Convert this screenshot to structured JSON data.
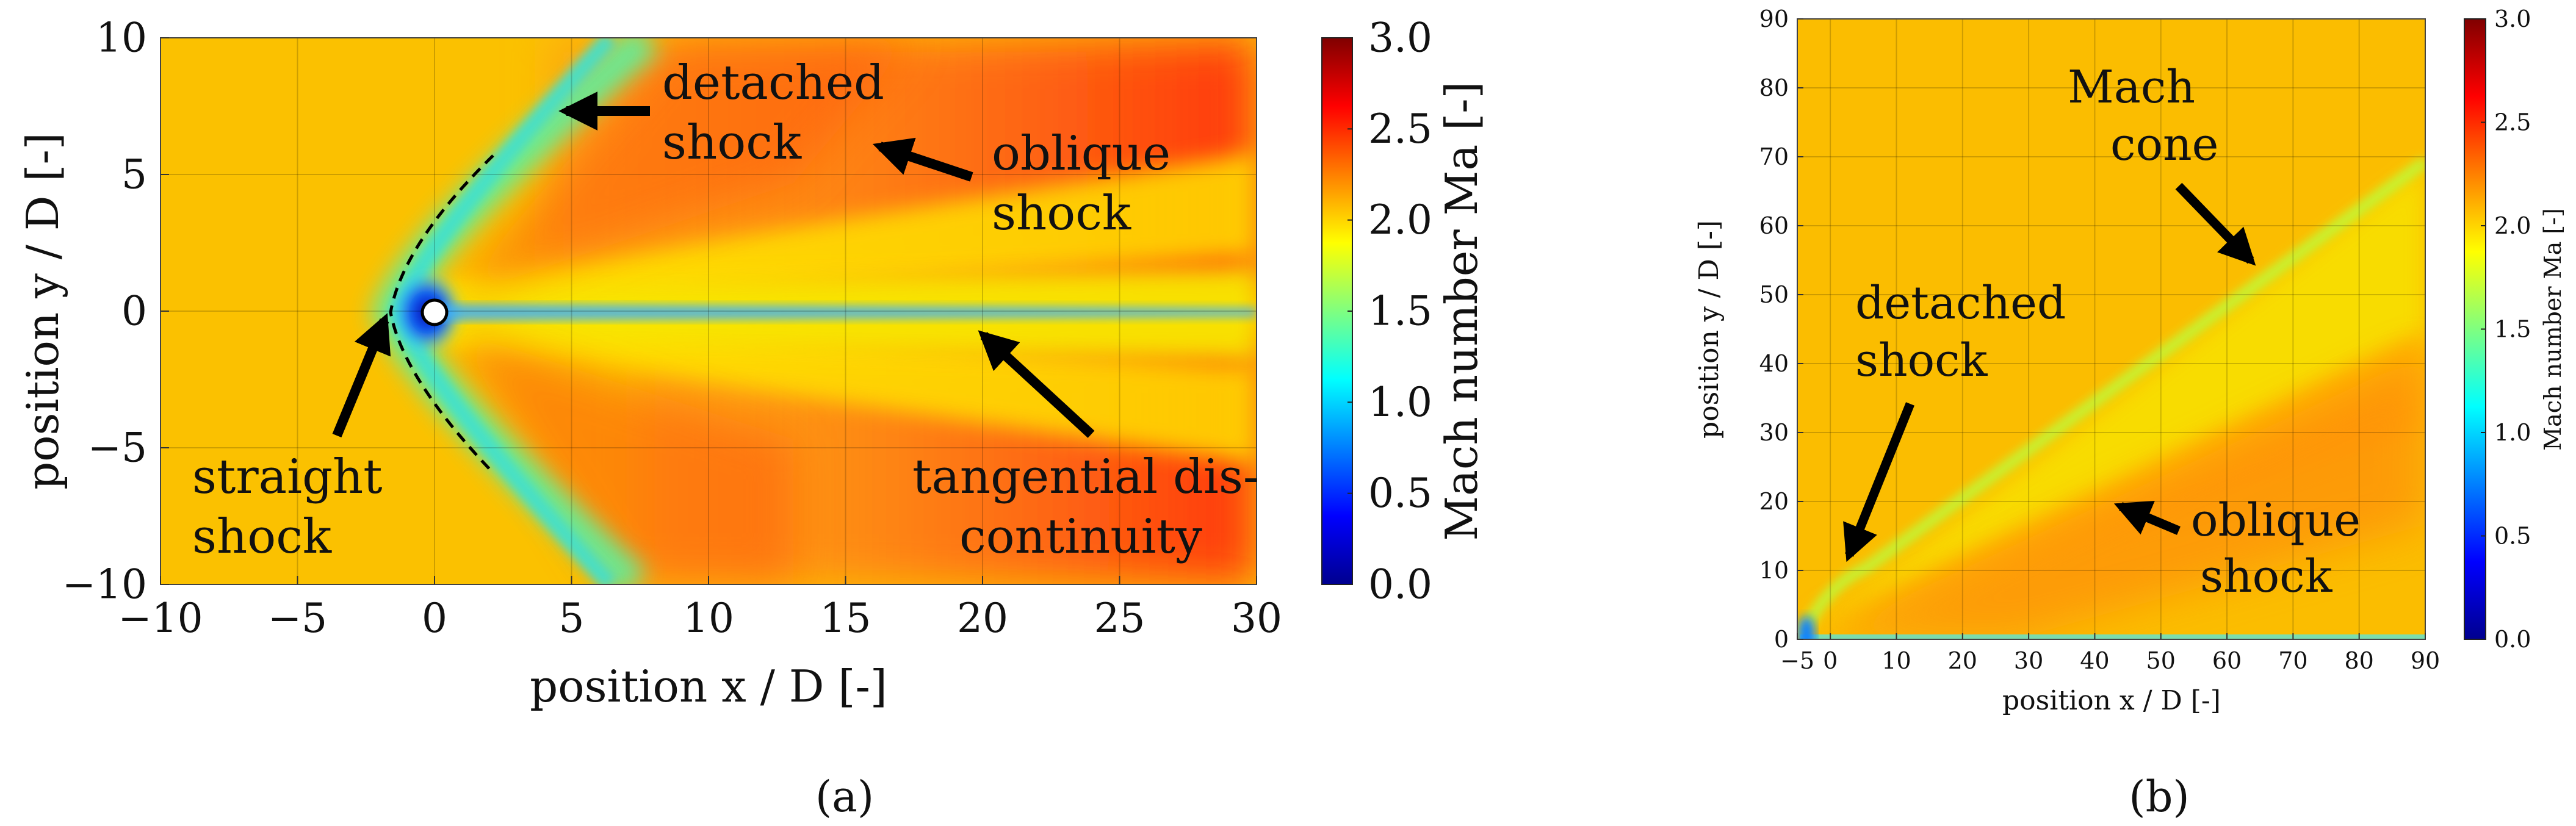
{
  "chart_data": [
    {
      "panel": "(a)",
      "type": "heatmap",
      "title": "",
      "xlabel": "position x / D [-]",
      "ylabel": "position y / D [-]",
      "xlim": [
        -10,
        30
      ],
      "ylim": [
        -10,
        10
      ],
      "xticks": [
        -10,
        -5,
        0,
        5,
        10,
        15,
        20,
        25,
        30
      ],
      "yticks": [
        -10,
        -5,
        0,
        5,
        10
      ],
      "grid": true,
      "colorbar": {
        "label": "Mach number Ma [-]",
        "range": [
          0.0,
          3.0
        ],
        "ticks": [
          0.0,
          0.5,
          1.0,
          1.5,
          2.0,
          2.5,
          3.0
        ]
      },
      "annotations": [
        {
          "text_lines": [
            "detached",
            "shock"
          ],
          "arrow_to": [
            4.5,
            7.3
          ]
        },
        {
          "text_lines": [
            "oblique",
            "shock"
          ],
          "arrow_to": [
            16,
            6
          ]
        },
        {
          "text_lines": [
            "straight",
            "shock"
          ],
          "arrow_to": [
            -1.8,
            0.3
          ]
        },
        {
          "text_lines": [
            "tangential dis-",
            "continuity"
          ],
          "arrow_to": [
            19.8,
            -0.6
          ]
        }
      ]
    },
    {
      "panel": "(b)",
      "type": "heatmap",
      "title": "",
      "xlabel": "position x / D [-]",
      "ylabel": "position y / D [-]",
      "xlim": [
        -5,
        90
      ],
      "ylim": [
        0,
        90
      ],
      "xticks": [
        -5,
        0,
        10,
        20,
        30,
        40,
        50,
        60,
        70,
        80,
        90
      ],
      "yticks": [
        0,
        10,
        20,
        30,
        40,
        50,
        60,
        70,
        80,
        90
      ],
      "grid": true,
      "colorbar": {
        "label": "Mach number Ma [-]",
        "range": [
          0.0,
          3.0
        ],
        "ticks": [
          0.0,
          0.5,
          1.0,
          1.5,
          2.0,
          2.5,
          3.0
        ]
      },
      "annotations": [
        {
          "text_lines": [
            "Mach",
            "cone"
          ],
          "arrow_to": [
            66,
            53
          ]
        },
        {
          "text_lines": [
            "detached",
            "shock"
          ],
          "arrow_to": [
            6,
            11
          ]
        },
        {
          "text_lines": [
            "oblique",
            "shock"
          ],
          "arrow_to": [
            45,
            20
          ]
        }
      ]
    }
  ]
}
